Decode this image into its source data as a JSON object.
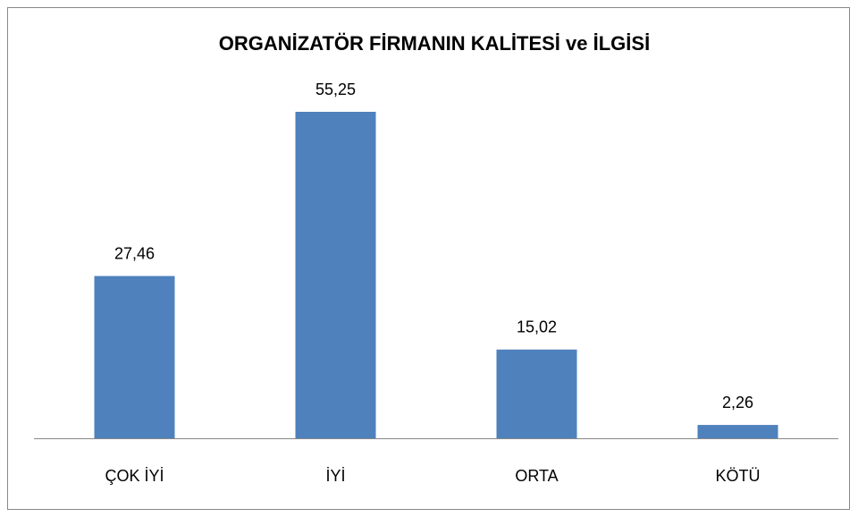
{
  "chart_data": {
    "type": "bar",
    "title": "ORGANİZATÖR FİRMANIN KALİTESİ ve İLGİSİ",
    "categories": [
      "ÇOK İYİ",
      "İYİ",
      "ORTA",
      "KÖTÜ"
    ],
    "values": [
      27.46,
      55.25,
      15.02,
      2.26
    ],
    "value_labels": [
      "27,46",
      "55,25",
      "15,02",
      "2,26"
    ],
    "color": "#4f81bd"
  }
}
